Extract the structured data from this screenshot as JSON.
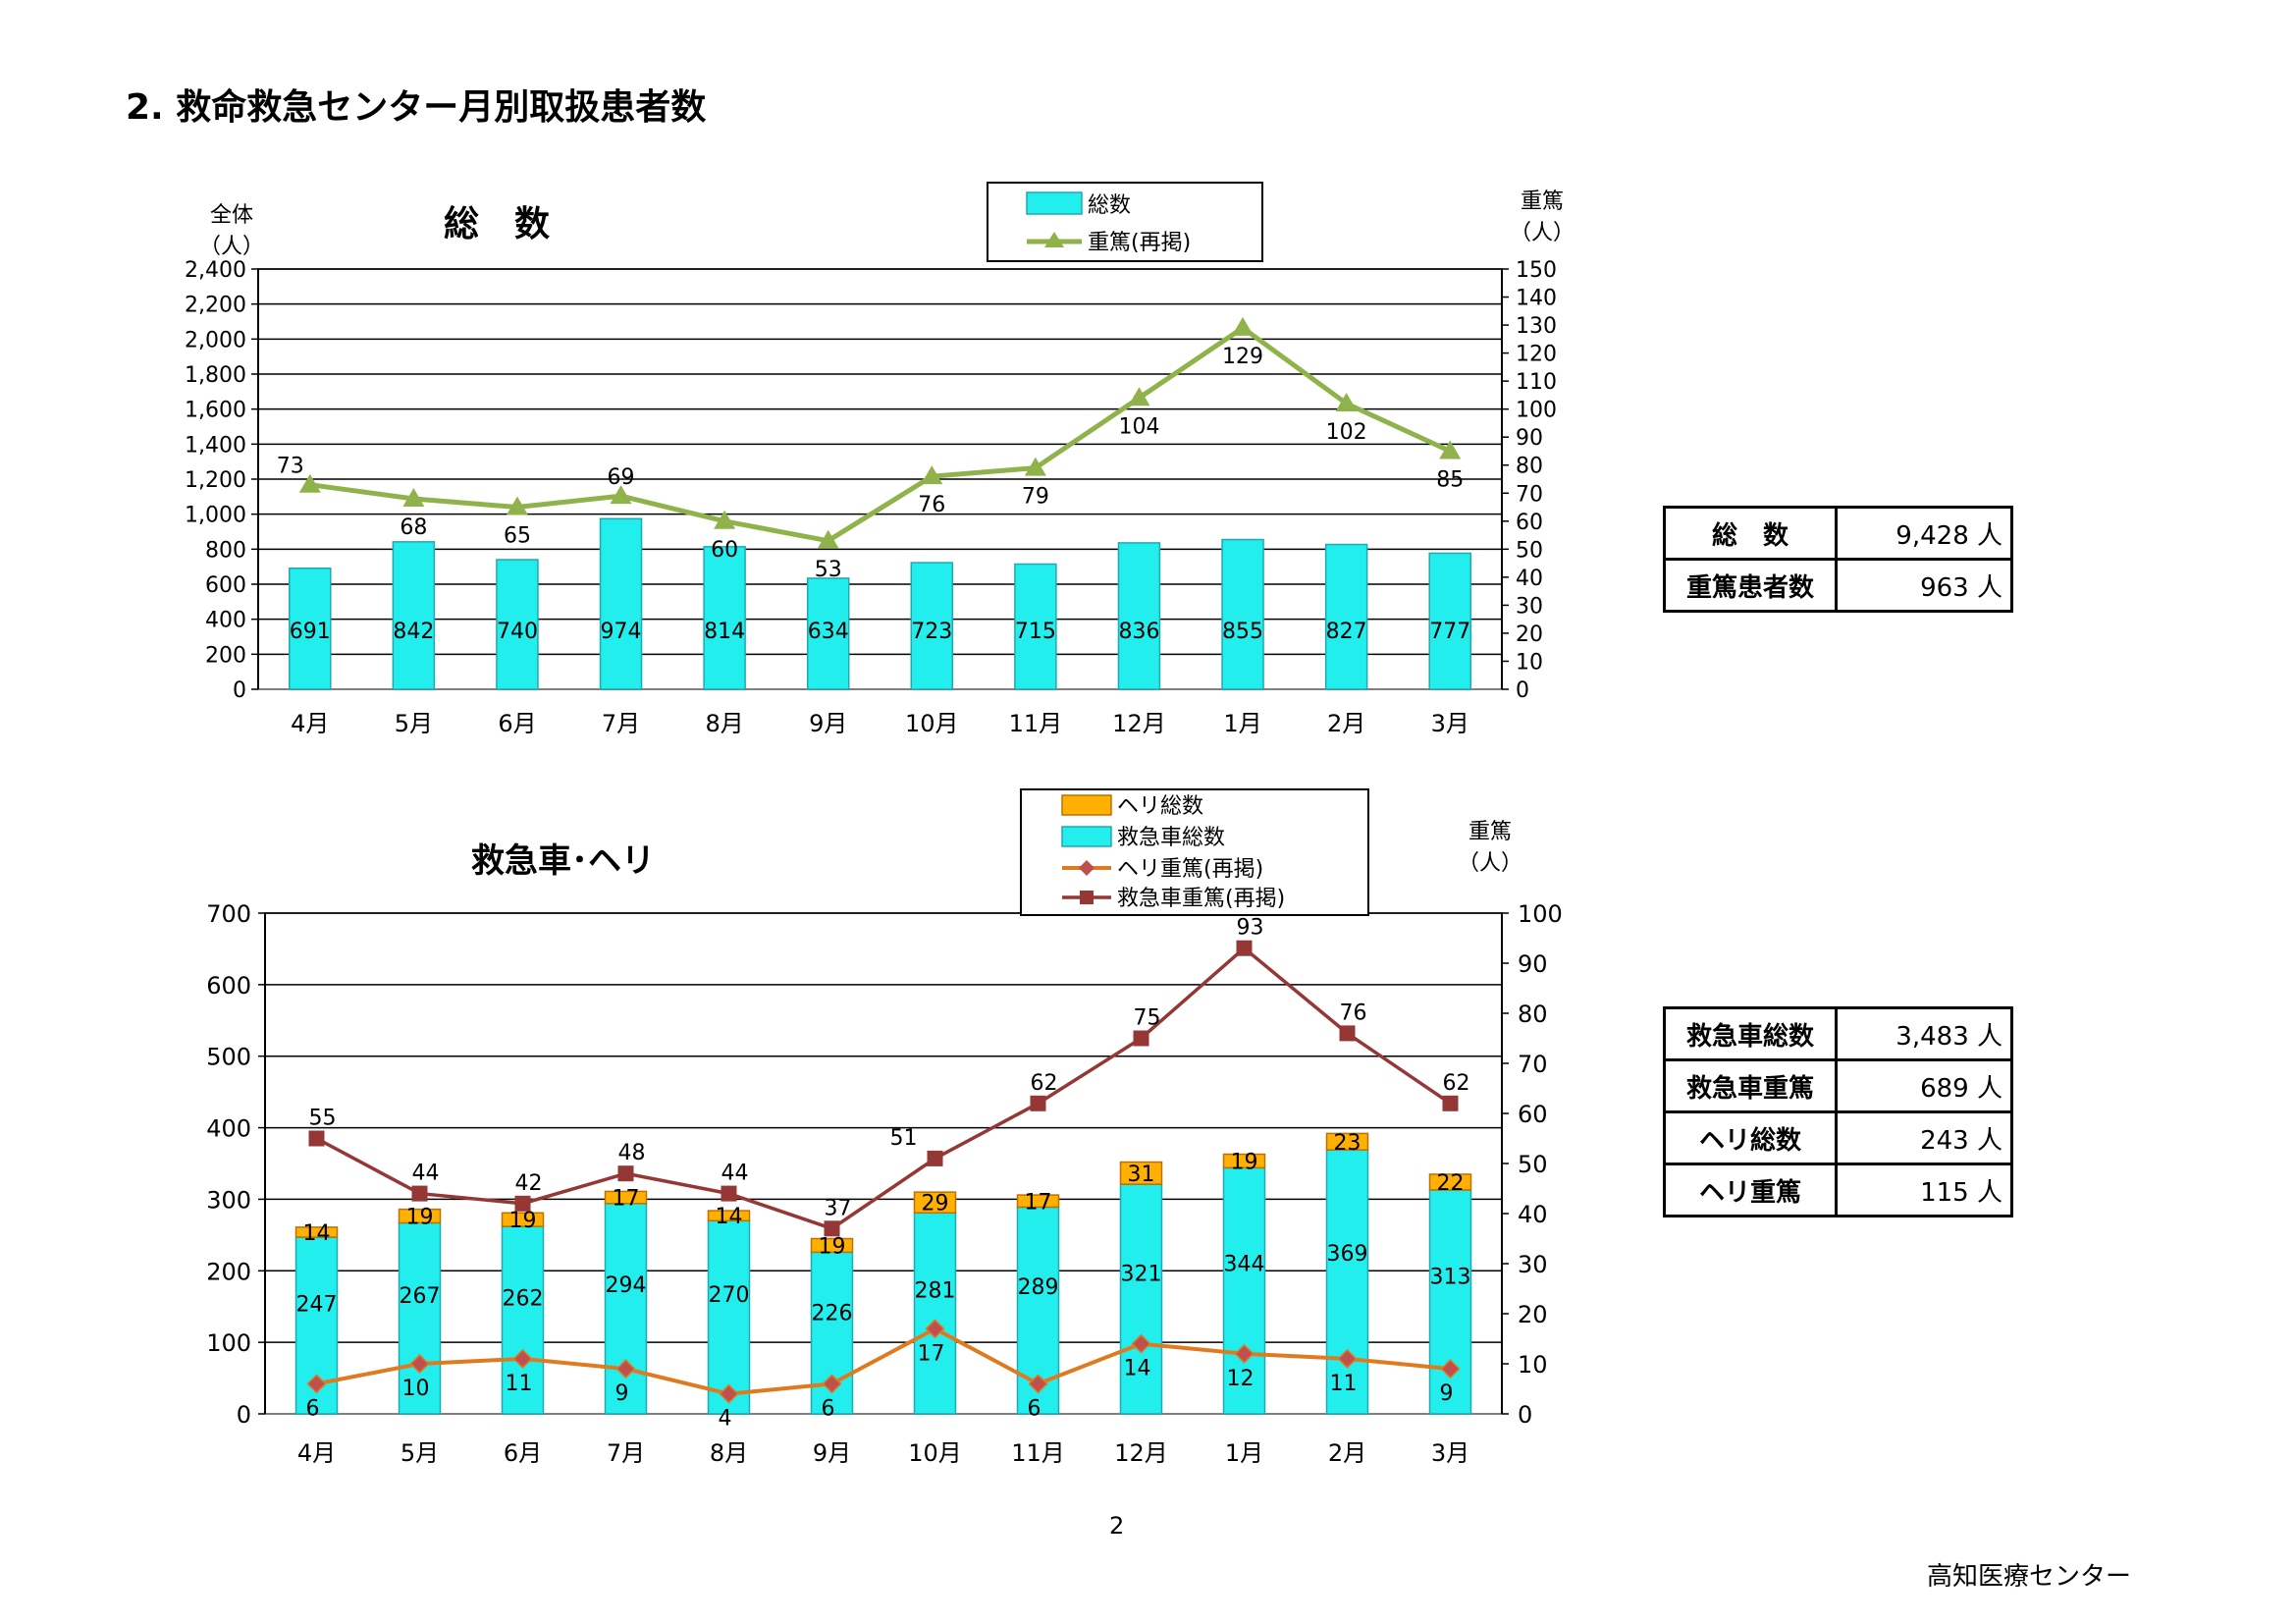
{
  "page": {
    "title": "2. 救命救急センター月別取扱患者数",
    "page_number": "2",
    "organization": "高知医療センター"
  },
  "colors": {
    "bar_total": "#22EEEE",
    "bar_total_edge": "#20A9B0",
    "bar_heli": "#FFB000",
    "bar_heli_edge": "#C07000",
    "line_severe": "#8FB34A",
    "line_heli_severe": "#E07A1F",
    "marker_heli_severe": "#C0504D",
    "line_ambulance_severe": "#953735"
  },
  "chart_data": [
    {
      "type": "bar",
      "title": "総　数",
      "categories": [
        "4月",
        "5月",
        "6月",
        "7月",
        "8月",
        "9月",
        "10月",
        "11月",
        "12月",
        "1月",
        "2月",
        "3月"
      ],
      "left_axis_label": [
        "全体",
        "（人）"
      ],
      "right_axis_label": [
        "重篤",
        "（人）"
      ],
      "ylim": [
        0,
        2400
      ],
      "y_ticks": [
        "0",
        "200",
        "400",
        "600",
        "800",
        "1,000",
        "1,200",
        "1,400",
        "1,600",
        "1,800",
        "2,000",
        "2,200",
        "2,400"
      ],
      "y2lim": [
        0,
        150
      ],
      "y2_ticks": [
        "0",
        "10",
        "20",
        "30",
        "40",
        "50",
        "60",
        "70",
        "80",
        "90",
        "100",
        "110",
        "120",
        "130",
        "140",
        "150"
      ],
      "grid": true,
      "legend": "top-right",
      "series": [
        {
          "name": "総数",
          "type": "bar",
          "axis": "left",
          "values": [
            691,
            842,
            740,
            974,
            814,
            634,
            723,
            715,
            836,
            855,
            827,
            777
          ]
        },
        {
          "name": "重篤(再掲)",
          "type": "line",
          "axis": "right",
          "values": [
            73,
            68,
            65,
            69,
            60,
            53,
            76,
            79,
            104,
            129,
            102,
            85
          ]
        }
      ]
    },
    {
      "type": "bar",
      "title": "救急車･ヘリ",
      "categories": [
        "4月",
        "5月",
        "6月",
        "7月",
        "8月",
        "9月",
        "10月",
        "11月",
        "12月",
        "1月",
        "2月",
        "3月"
      ],
      "right_axis_label": [
        "重篤",
        "（人）"
      ],
      "ylim": [
        0,
        700
      ],
      "y_ticks": [
        "0",
        "100",
        "200",
        "300",
        "400",
        "500",
        "600",
        "700"
      ],
      "y2lim": [
        0,
        100
      ],
      "y2_ticks": [
        "0",
        "10",
        "20",
        "30",
        "40",
        "50",
        "60",
        "70",
        "80",
        "90",
        "100"
      ],
      "grid": true,
      "legend": "top-right",
      "series": [
        {
          "name": "ヘリ総数",
          "type": "stacked-bar",
          "axis": "left",
          "values": [
            14,
            19,
            19,
            17,
            14,
            19,
            29,
            17,
            31,
            19,
            23,
            22
          ]
        },
        {
          "name": "救急車総数",
          "type": "stacked-bar",
          "axis": "left",
          "values": [
            247,
            267,
            262,
            294,
            270,
            226,
            281,
            289,
            321,
            344,
            369,
            313
          ]
        },
        {
          "name": "ヘリ重篤(再掲)",
          "type": "line",
          "axis": "right",
          "values": [
            6,
            10,
            11,
            9,
            4,
            6,
            17,
            6,
            14,
            12,
            11,
            9
          ]
        },
        {
          "name": "救急車重篤(再掲)",
          "type": "line",
          "axis": "right",
          "values": [
            55,
            44,
            42,
            48,
            44,
            37,
            51,
            62,
            75,
            93,
            76,
            62
          ]
        }
      ]
    }
  ],
  "summary_tables": [
    {
      "rows": [
        {
          "label": "総　数",
          "value": "9,428 人"
        },
        {
          "label": "重篤患者数",
          "value": "963 人"
        }
      ]
    },
    {
      "rows": [
        {
          "label": "救急車総数",
          "value": "3,483 人"
        },
        {
          "label": "救急車重篤",
          "value": "689 人"
        },
        {
          "label": "ヘリ総数",
          "value": "243 人"
        },
        {
          "label": "ヘリ重篤",
          "value": "115 人"
        }
      ]
    }
  ]
}
